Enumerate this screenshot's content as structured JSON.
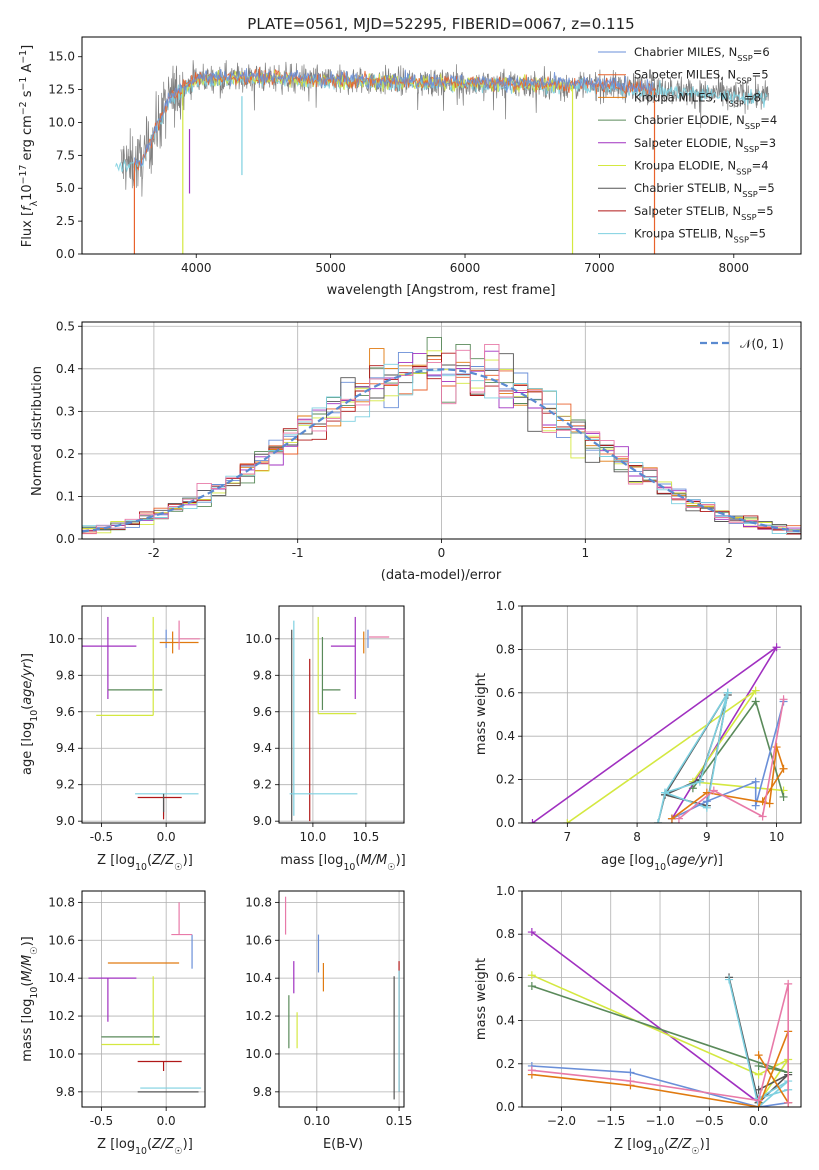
{
  "figure_title": "PLATE=0561, MJD=52295, FIBERID=0067, z=0.115",
  "colors": {
    "Chabrier MILES": "#6a8fd8",
    "Salpeter MILES": "#e8622c",
    "Kroupa MILES": "#e07a10",
    "Chabrier ELODIE": "#5a8a5a",
    "Salpeter ELODIE": "#a030c0",
    "Kroupa ELODIE": "#d4e840",
    "Chabrier STELIB": "#555555",
    "Salpeter STELIB": "#b01818",
    "Kroupa STELIB": "#7ed0e0",
    "pink": "#e87aa8",
    "gauss": "#5a8ad0",
    "grid": "#b0b0b0"
  },
  "chart_data": [
    {
      "type": "line",
      "panel": "spectrum",
      "title": "PLATE=0561, MJD=52295, FIBERID=0067, z=0.115",
      "xlabel": "wavelength [Angstrom, rest frame]",
      "ylabel": "Flux [f_λ 10^-17 erg cm^-2 s^-1 A^-1]",
      "xlim": [
        3150,
        8500
      ],
      "ylim": [
        0,
        16.5
      ],
      "xticks": [
        4000,
        5000,
        6000,
        7000,
        8000
      ],
      "yticks": [
        0.0,
        2.5,
        5.0,
        7.5,
        10.0,
        12.5,
        15.0
      ],
      "grid": false,
      "legend_position": "right",
      "legend": [
        {
          "name": "Chabrier MILES",
          "nssp": "6"
        },
        {
          "name": "Salpeter MILES",
          "nssp": "5"
        },
        {
          "name": "Kroupa MILES",
          "nssp": "8"
        },
        {
          "name": "Chabrier ELODIE",
          "nssp": "4"
        },
        {
          "name": "Salpeter ELODIE",
          "nssp": "3"
        },
        {
          "name": "Kroupa ELODIE",
          "nssp": "4"
        },
        {
          "name": "Chabrier STELIB",
          "nssp": "5"
        },
        {
          "name": "Salpeter STELIB",
          "nssp": "5"
        },
        {
          "name": "Kroupa STELIB",
          "nssp": "5"
        }
      ],
      "continuum": {
        "x": [
          3400,
          3600,
          3700,
          3800,
          3900,
          4000,
          4200,
          4500,
          5000,
          5500,
          6000,
          6500,
          7000,
          7500,
          8000,
          8250
        ],
        "y": [
          6.7,
          7.0,
          9.5,
          11.8,
          12.6,
          13.3,
          13.4,
          13.4,
          13.2,
          13.1,
          13.0,
          12.9,
          12.8,
          12.5,
          12.1,
          12.0
        ]
      },
      "observed_noise_range": 2.4
    },
    {
      "type": "bar",
      "panel": "residual-histogram",
      "xlabel": "(data-model)/error",
      "ylabel": "Normed distribution",
      "xlim": [
        -2.5,
        2.5
      ],
      "ylim": [
        0,
        0.51
      ],
      "xticks": [
        -2,
        -1,
        0,
        1,
        2
      ],
      "yticks": [
        0.0,
        0.1,
        0.2,
        0.3,
        0.4,
        0.5
      ],
      "grid": true,
      "legend_position": "top-right",
      "legend": [
        "𝒩(0, 1)"
      ],
      "bin_width": 0.1,
      "bin_start": -2.5,
      "gaussian": {
        "mean": 0,
        "sigma": 1
      }
    },
    {
      "type": "scatter",
      "panel": "age-vs-Z",
      "xlabel": "Z [log10(Z/Z☉)]",
      "ylabel": "age  [log10(age/yr)]",
      "xlim": [
        -0.65,
        0.3
      ],
      "ylim": [
        8.99,
        10.18
      ],
      "xticks": [
        -0.5,
        0.0
      ],
      "yticks": [
        9.0,
        9.2,
        9.4,
        9.6,
        9.8,
        10.0
      ],
      "points": [
        {
          "c": "Salpeter ELODIE",
          "x": -0.45,
          "xe": [
            0.36,
            0.22
          ],
          "y": 9.96,
          "ye": [
            0.29,
            0.16
          ]
        },
        {
          "c": "Chabrier ELODIE",
          "x": -0.25,
          "xe": [
            0.2,
            0.22
          ],
          "y": 9.72,
          "ye": [
            0.0,
            0.0
          ]
        },
        {
          "c": "Kroupa ELODIE",
          "x": -0.1,
          "xe": [
            0.44,
            0.0
          ],
          "y": 9.58,
          "ye": [
            0.0,
            0.54
          ]
        },
        {
          "c": "Chabrier MILES",
          "x": 0.0,
          "xe": [
            0.0,
            0.0
          ],
          "y": 9.99,
          "ye": [
            0.04,
            0.06
          ]
        },
        {
          "c": "Kroupa MILES",
          "x": 0.05,
          "xe": [
            0.1,
            0.2
          ],
          "y": 9.98,
          "ye": [
            0.06,
            0.06
          ]
        },
        {
          "c": "pink",
          "x": 0.1,
          "xe": [
            0.0,
            0.16
          ],
          "y": 10.0,
          "ye": [
            0.06,
            0.1
          ]
        },
        {
          "c": "Kroupa STELIB",
          "x": -0.02,
          "xe": [
            0.22,
            0.27
          ],
          "y": 9.15,
          "ye": [
            0.12,
            0.0
          ]
        },
        {
          "c": "Salpeter STELIB",
          "x": -0.02,
          "xe": [
            0.2,
            0.14
          ],
          "y": 9.13,
          "ye": [
            0.12,
            0.0
          ]
        },
        {
          "c": "Chabrier STELIB",
          "x": -0.02,
          "xe": [
            0.0,
            0.0
          ],
          "y": 9.15,
          "ye": [
            0.1,
            0.0
          ]
        }
      ]
    },
    {
      "type": "scatter",
      "panel": "age-vs-mass",
      "xlabel": "mass [log10(M/M☉)]",
      "ylabel": "",
      "xlim": [
        9.68,
        10.86
      ],
      "ylim": [
        8.99,
        10.18
      ],
      "xticks": [
        10.0,
        10.5
      ],
      "yticks": [
        9.0,
        9.2,
        9.4,
        9.6,
        9.8,
        10.0
      ],
      "points": [
        {
          "c": "Kroupa STELIB",
          "x": 9.82,
          "xe": [
            0.0,
            0.0
          ],
          "y": 9.15,
          "ye": [
            0.12,
            0.95
          ]
        },
        {
          "c": "Chabrier STELIB",
          "x": 9.8,
          "xe": [
            0.0,
            0.0
          ],
          "y": 9.15,
          "ye": [
            0.15,
            0.9
          ]
        },
        {
          "c": "Salpeter STELIB",
          "x": 9.97,
          "xe": [
            0.0,
            0.0
          ],
          "y": 9.13,
          "ye": [
            0.13,
            0.76
          ]
        },
        {
          "c": "Kroupa STELIB",
          "x": 10.05,
          "xe": [
            0.27,
            0.37
          ],
          "y": 9.15,
          "ye": [
            0.0,
            0.0
          ]
        },
        {
          "c": "Chabrier ELODIE",
          "x": 10.09,
          "xe": [
            0.0,
            0.17
          ],
          "y": 9.72,
          "ye": [
            0.11,
            0.29
          ]
        },
        {
          "c": "Kroupa ELODIE",
          "x": 10.05,
          "xe": [
            0.0,
            0.36
          ],
          "y": 9.59,
          "ye": [
            0.0,
            0.53
          ]
        },
        {
          "c": "Salpeter ELODIE",
          "x": 10.4,
          "xe": [
            0.23,
            0.0
          ],
          "y": 9.96,
          "ye": [
            0.29,
            0.16
          ]
        },
        {
          "c": "Chabrier MILES",
          "x": 10.52,
          "xe": [
            0.0,
            0.0
          ],
          "y": 9.99,
          "ye": [
            0.04,
            0.06
          ]
        },
        {
          "c": "Kroupa MILES",
          "x": 10.48,
          "xe": [
            0.0,
            0.0
          ],
          "y": 9.98,
          "ye": [
            0.06,
            0.06
          ]
        },
        {
          "c": "pink",
          "x": 10.63,
          "xe": [
            0.1,
            0.09
          ],
          "y": 10.01,
          "ye": [
            0.0,
            0.0
          ]
        }
      ]
    },
    {
      "type": "line",
      "panel": "weight-vs-age",
      "xlabel": "age  [log10(age/yr)]",
      "ylabel": "mass weight",
      "xlim": [
        6.35,
        10.35
      ],
      "ylim": [
        0,
        1.0
      ],
      "xticks": [
        7,
        8,
        9,
        10
      ],
      "yticks": [
        0.0,
        0.2,
        0.4,
        0.6,
        0.8,
        1.0
      ],
      "series": [
        {
          "c": "Salpeter ELODIE",
          "x": [
            6.5,
            10.0,
            8.5
          ],
          "y": [
            0.0,
            0.81,
            0.02
          ]
        },
        {
          "c": "Kroupa ELODIE",
          "x": [
            7.0,
            9.7,
            8.8,
            10.1
          ],
          "y": [
            0.0,
            0.61,
            0.19,
            0.15
          ]
        },
        {
          "c": "Chabrier ELODIE",
          "x": [
            8.8,
            9.7,
            10.1
          ],
          "y": [
            0.16,
            0.56,
            0.12
          ]
        },
        {
          "c": "Chabrier STELIB",
          "x": [
            8.3,
            8.4,
            9.0,
            9.3,
            8.4,
            8.9,
            9.3
          ],
          "y": [
            0.0,
            0.13,
            0.08,
            0.6,
            0.13,
            0.2,
            0.59
          ]
        },
        {
          "c": "Kroupa STELIB",
          "x": [
            8.3,
            8.4,
            9.0,
            9.3,
            8.4,
            8.9,
            9.3
          ],
          "y": [
            0.0,
            0.14,
            0.07,
            0.6,
            0.14,
            0.19,
            0.6
          ]
        },
        {
          "c": "Chabrier MILES",
          "x": [
            8.5,
            9.0,
            9.7,
            9.7,
            10.1
          ],
          "y": [
            0.02,
            0.1,
            0.19,
            0.08,
            0.56
          ]
        },
        {
          "c": "Kroupa MILES",
          "x": [
            8.5,
            9.0,
            9.9,
            10.0,
            10.1,
            9.8
          ],
          "y": [
            0.02,
            0.14,
            0.09,
            0.35,
            0.25,
            0.1
          ]
        },
        {
          "c": "pink",
          "x": [
            8.6,
            9.1,
            9.8,
            10.1
          ],
          "y": [
            0.02,
            0.15,
            0.03,
            0.57
          ]
        }
      ]
    },
    {
      "type": "scatter",
      "panel": "mass-vs-Z",
      "xlabel": "Z [log10(Z/Z☉)]",
      "ylabel": "mass [log10(M/M☉)]",
      "xlim": [
        -0.65,
        0.3
      ],
      "ylim": [
        9.72,
        10.86
      ],
      "xticks": [
        -0.5,
        0.0
      ],
      "yticks": [
        9.8,
        10.0,
        10.2,
        10.4,
        10.6,
        10.8
      ],
      "points": [
        {
          "c": "Salpeter ELODIE",
          "x": -0.45,
          "xe": [
            0.15,
            0.22
          ],
          "y": 10.4,
          "ye": [
            0.23,
            0.0
          ]
        },
        {
          "c": "Kroupa MILES",
          "x": -0.45,
          "xe": [
            0.0,
            0.55
          ],
          "y": 10.48,
          "ye": [
            0.0,
            0.0
          ]
        },
        {
          "c": "Chabrier ELODIE",
          "x": -0.5,
          "xe": [
            0.0,
            0.45
          ],
          "y": 10.09,
          "ye": [
            0.0,
            0.0
          ]
        },
        {
          "c": "Kroupa ELODIE",
          "x": -0.5,
          "xe": [
            0.0,
            0.45
          ],
          "y": 10.05,
          "ye": [
            0.0,
            0.0
          ]
        },
        {
          "c": "Kroupa ELODIE",
          "x": -0.1,
          "xe": [
            0.0,
            0.0
          ],
          "y": 10.05,
          "ye": [
            0.0,
            0.36
          ]
        },
        {
          "c": "Salpeter STELIB",
          "x": -0.02,
          "xe": [
            0.2,
            0.14
          ],
          "y": 9.96,
          "ye": [
            0.05,
            0.0
          ]
        },
        {
          "c": "Chabrier STELIB",
          "x": -0.02,
          "xe": [
            0.2,
            0.27
          ],
          "y": 9.8,
          "ye": [
            0.0,
            0.0
          ]
        },
        {
          "c": "Kroupa STELIB",
          "x": 0.0,
          "xe": [
            0.2,
            0.27
          ],
          "y": 9.82,
          "ye": [
            0.0,
            0.0
          ]
        },
        {
          "c": "Chabrier MILES",
          "x": 0.1,
          "xe": [
            0.0,
            0.0
          ],
          "y": 10.52,
          "ye": [
            0.0,
            0.0
          ]
        },
        {
          "c": "Chabrier MILES",
          "x": 0.2,
          "xe": [
            0.0,
            0.0
          ],
          "y": 10.45,
          "ye": [
            0.0,
            0.18
          ]
        },
        {
          "c": "pink",
          "x": 0.1,
          "xe": [
            0.06,
            0.1
          ],
          "y": 10.63,
          "ye": [
            0.0,
            0.17
          ]
        }
      ]
    },
    {
      "type": "scatter",
      "panel": "mass-vs-ebv",
      "xlabel": "E(B-V)",
      "ylabel": "",
      "xlim": [
        0.077,
        0.153
      ],
      "ylim": [
        9.72,
        10.86
      ],
      "xticks": [
        0.1,
        0.15
      ],
      "yticks": [
        9.8,
        10.0,
        10.2,
        10.4,
        10.6,
        10.8
      ],
      "points": [
        {
          "c": "pink",
          "x": 0.081,
          "xe": [
            0.0,
            0.0
          ],
          "y": 10.73,
          "ye": [
            0.1,
            0.1
          ]
        },
        {
          "c": "Salpeter ELODIE",
          "x": 0.086,
          "xe": [
            0.0,
            0.0
          ],
          "y": 10.4,
          "ye": [
            0.08,
            0.09
          ]
        },
        {
          "c": "Chabrier ELODIE",
          "x": 0.083,
          "xe": [
            0.0,
            0.0
          ],
          "y": 10.16,
          "ye": [
            0.13,
            0.15
          ]
        },
        {
          "c": "Kroupa ELODIE",
          "x": 0.088,
          "xe": [
            0.0,
            0.0
          ],
          "y": 10.12,
          "ye": [
            0.09,
            0.1
          ]
        },
        {
          "c": "Chabrier MILES",
          "x": 0.101,
          "xe": [
            0.0,
            0.0
          ],
          "y": 10.52,
          "ye": [
            0.09,
            0.11
          ]
        },
        {
          "c": "Kroupa MILES",
          "x": 0.104,
          "xe": [
            0.0,
            0.0
          ],
          "y": 10.4,
          "ye": [
            0.07,
            0.08
          ]
        },
        {
          "c": "Chabrier STELIB",
          "x": 0.147,
          "xe": [
            0.0,
            0.0
          ],
          "y": 10.06,
          "ye": [
            0.3,
            0.35
          ]
        },
        {
          "c": "Salpeter STELIB",
          "x": 0.15,
          "xe": [
            0.0,
            0.0
          ],
          "y": 10.2,
          "ye": [
            0.4,
            0.29
          ]
        },
        {
          "c": "Kroupa STELIB",
          "x": 0.15,
          "xe": [
            0.0,
            0.0
          ],
          "y": 10.15,
          "ye": [
            0.35,
            0.29
          ]
        }
      ]
    },
    {
      "type": "line",
      "panel": "weight-vs-Z",
      "xlabel": "Z [log10(Z/Z☉)]",
      "ylabel": "mass weight",
      "xlim": [
        -2.4,
        0.43
      ],
      "ylim": [
        0,
        1.0
      ],
      "xticks": [
        -2.0,
        -1.5,
        -1.0,
        -0.5,
        0.0
      ],
      "yticks": [
        0.0,
        0.2,
        0.4,
        0.6,
        0.8,
        1.0
      ],
      "series": [
        {
          "c": "Salpeter ELODIE",
          "x": [
            -2.3,
            0.0
          ],
          "y": [
            0.81,
            0.02
          ]
        },
        {
          "c": "Kroupa ELODIE",
          "x": [
            -2.3,
            0.0,
            0.3,
            0.0
          ],
          "y": [
            0.61,
            0.15,
            0.22,
            0.02
          ]
        },
        {
          "c": "Chabrier ELODIE",
          "x": [
            -2.3,
            0.3,
            0.0
          ],
          "y": [
            0.56,
            0.16,
            0.19
          ]
        },
        {
          "c": "Chabrier STELIB",
          "x": [
            -0.3,
            0.0,
            0.3,
            0.0
          ],
          "y": [
            0.6,
            0.02,
            0.15,
            0.08
          ]
        },
        {
          "c": "Kroupa STELIB",
          "x": [
            -0.3,
            0.0,
            0.3,
            0.0,
            0.3
          ],
          "y": [
            0.59,
            0.0,
            0.12,
            0.04,
            0.08
          ]
        },
        {
          "c": "Chabrier MILES",
          "x": [
            -2.3,
            -1.3,
            0.0,
            0.3
          ],
          "y": [
            0.19,
            0.16,
            0.0,
            0.02
          ]
        },
        {
          "c": "Kroupa MILES",
          "x": [
            -2.3,
            -1.3,
            0.0,
            0.3,
            0.3,
            0.0
          ],
          "y": [
            0.15,
            0.1,
            0.0,
            0.35,
            0.02,
            0.24
          ]
        },
        {
          "c": "pink",
          "x": [
            -2.3,
            -1.3,
            0.0,
            0.3,
            0.3
          ],
          "y": [
            0.17,
            0.12,
            0.03,
            0.57,
            0.02
          ]
        }
      ]
    }
  ]
}
